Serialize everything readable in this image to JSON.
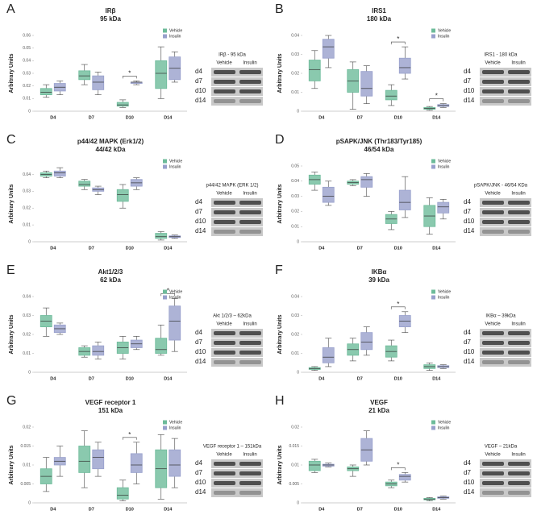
{
  "chart_data": [
    {
      "type": "box",
      "panel": "A",
      "title": "IRβ",
      "subtitle": "95 kDa",
      "y_label": "Arbitrary Units",
      "categories": [
        "D4",
        "D7",
        "D10",
        "D14"
      ],
      "ylim": [
        0,
        0.06
      ],
      "yticks": [
        0,
        0.01,
        0.02,
        0.03,
        0.04,
        0.05,
        0.06
      ],
      "legend": "upper right",
      "series": [
        {
          "name": "Vehicle",
          "color": "#6dbb9a",
          "values": [
            {
              "min": 0.011,
              "q1": 0.013,
              "median": 0.015,
              "q3": 0.018,
              "max": 0.021
            },
            {
              "min": 0.021,
              "q1": 0.025,
              "median": 0.028,
              "q3": 0.032,
              "max": 0.037
            },
            {
              "min": 0.003,
              "q1": 0.004,
              "median": 0.005,
              "q3": 0.007,
              "max": 0.009
            },
            {
              "min": 0.01,
              "q1": 0.018,
              "median": 0.03,
              "q3": 0.04,
              "max": 0.051
            }
          ]
        },
        {
          "name": "Insulin",
          "color": "#98a0cc",
          "values": [
            {
              "min": 0.013,
              "q1": 0.016,
              "median": 0.019,
              "q3": 0.022,
              "max": 0.024
            },
            {
              "min": 0.013,
              "q1": 0.017,
              "median": 0.023,
              "q3": 0.028,
              "max": 0.031
            },
            {
              "min": 0.021,
              "q1": 0.022,
              "median": 0.023,
              "q3": 0.023,
              "max": 0.024
            },
            {
              "min": 0.023,
              "q1": 0.025,
              "median": 0.034,
              "q3": 0.043,
              "max": 0.047
            }
          ]
        }
      ],
      "annotations": [
        {
          "category": "D10",
          "text": "*"
        }
      ],
      "blot": {
        "title": "IRβ - 95 kDa",
        "lanes": [
          "Vehicle",
          "Insulin"
        ],
        "rows": [
          "d4",
          "d7",
          "d10",
          "d14"
        ]
      }
    },
    {
      "type": "box",
      "panel": "B",
      "title": "IRS1",
      "subtitle": "180 kDa",
      "y_label": "Arbitrary Units",
      "categories": [
        "D4",
        "D7",
        "D10",
        "D14"
      ],
      "ylim": [
        0,
        0.04
      ],
      "yticks": [
        0,
        0.01,
        0.02,
        0.03,
        0.04
      ],
      "legend": "upper right",
      "series": [
        {
          "name": "Vehicle",
          "color": "#6dbb9a",
          "values": [
            {
              "min": 0.012,
              "q1": 0.016,
              "median": 0.022,
              "q3": 0.027,
              "max": 0.032
            },
            {
              "min": 0.001,
              "q1": 0.01,
              "median": 0.016,
              "q3": 0.022,
              "max": 0.026
            },
            {
              "min": 0.003,
              "q1": 0.006,
              "median": 0.008,
              "q3": 0.011,
              "max": 0.014
            },
            {
              "min": 0.0005,
              "q1": 0.001,
              "median": 0.0015,
              "q3": 0.002,
              "max": 0.0025
            }
          ]
        },
        {
          "name": "Insulin",
          "color": "#98a0cc",
          "values": [
            {
              "min": 0.023,
              "q1": 0.028,
              "median": 0.034,
              "q3": 0.038,
              "max": 0.04
            },
            {
              "min": 0.004,
              "q1": 0.008,
              "median": 0.012,
              "q3": 0.021,
              "max": 0.024
            },
            {
              "min": 0.017,
              "q1": 0.02,
              "median": 0.023,
              "q3": 0.028,
              "max": 0.034
            },
            {
              "min": 0.002,
              "q1": 0.0025,
              "median": 0.003,
              "q3": 0.0035,
              "max": 0.004
            }
          ]
        }
      ],
      "annotations": [
        {
          "category": "D10",
          "text": "*"
        },
        {
          "category": "D14",
          "text": "*"
        }
      ],
      "blot": {
        "title": "IRS1 - 180 kDa",
        "lanes": [
          "Vehicle",
          "Insulin"
        ],
        "rows": [
          "d4",
          "d7",
          "d10",
          "d14"
        ]
      }
    },
    {
      "type": "box",
      "panel": "C",
      "title": "p44/42 MAPK (Erk1/2)",
      "subtitle": "44/42 kDa",
      "y_label": "Arbitrary Units",
      "categories": [
        "D4",
        "D7",
        "D10",
        "D14"
      ],
      "ylim": [
        0,
        0.045
      ],
      "yticks": [
        0,
        0.01,
        0.02,
        0.03,
        0.04
      ],
      "legend": "upper right",
      "series": [
        {
          "name": "Vehicle",
          "color": "#6dbb9a",
          "values": [
            {
              "min": 0.038,
              "q1": 0.039,
              "median": 0.04,
              "q3": 0.041,
              "max": 0.042
            },
            {
              "min": 0.031,
              "q1": 0.033,
              "median": 0.034,
              "q3": 0.036,
              "max": 0.037
            },
            {
              "min": 0.02,
              "q1": 0.024,
              "median": 0.028,
              "q3": 0.031,
              "max": 0.034
            },
            {
              "min": 0.001,
              "q1": 0.002,
              "median": 0.003,
              "q3": 0.005,
              "max": 0.006
            }
          ]
        },
        {
          "name": "Insulin",
          "color": "#98a0cc",
          "values": [
            {
              "min": 0.038,
              "q1": 0.039,
              "median": 0.041,
              "q3": 0.042,
              "max": 0.044
            },
            {
              "min": 0.028,
              "q1": 0.03,
              "median": 0.031,
              "q3": 0.032,
              "max": 0.033
            },
            {
              "min": 0.031,
              "q1": 0.033,
              "median": 0.035,
              "q3": 0.037,
              "max": 0.038
            },
            {
              "min": 0.002,
              "q1": 0.0025,
              "median": 0.003,
              "q3": 0.0035,
              "max": 0.004
            }
          ]
        }
      ],
      "annotations": [],
      "blot": {
        "title": "p44/42 MAPK (ERK 1/2)",
        "lanes": [
          "Vehicle",
          "Insulin"
        ],
        "rows": [
          "d4",
          "d7",
          "d10",
          "d14"
        ]
      }
    },
    {
      "type": "box",
      "panel": "D",
      "title": "pSAPK/JNK (Thr183/Tyr185)",
      "subtitle": "46/54 kDa",
      "y_label": "Arbitrary Units",
      "categories": [
        "D4",
        "D7",
        "D10",
        "D14"
      ],
      "ylim": [
        0,
        0.05
      ],
      "yticks": [
        0,
        0.01,
        0.02,
        0.03,
        0.04,
        0.05
      ],
      "legend": "upper right",
      "series": [
        {
          "name": "Vehicle",
          "color": "#6dbb9a",
          "values": [
            {
              "min": 0.034,
              "q1": 0.038,
              "median": 0.041,
              "q3": 0.044,
              "max": 0.046
            },
            {
              "min": 0.037,
              "q1": 0.038,
              "median": 0.039,
              "q3": 0.04,
              "max": 0.041
            },
            {
              "min": 0.008,
              "q1": 0.012,
              "median": 0.015,
              "q3": 0.018,
              "max": 0.02
            },
            {
              "min": 0.005,
              "q1": 0.01,
              "median": 0.017,
              "q3": 0.024,
              "max": 0.029
            }
          ]
        },
        {
          "name": "Insulin",
          "color": "#98a0cc",
          "values": [
            {
              "min": 0.024,
              "q1": 0.026,
              "median": 0.03,
              "q3": 0.036,
              "max": 0.04
            },
            {
              "min": 0.03,
              "q1": 0.036,
              "median": 0.041,
              "q3": 0.043,
              "max": 0.045
            },
            {
              "min": 0.016,
              "q1": 0.021,
              "median": 0.026,
              "q3": 0.034,
              "max": 0.043
            },
            {
              "min": 0.015,
              "q1": 0.019,
              "median": 0.023,
              "q3": 0.026,
              "max": 0.028
            }
          ]
        }
      ],
      "annotations": [],
      "blot": {
        "title": "pSAPK/JNK - 46/54 KDa",
        "lanes": [
          "Vehicle",
          "Insulin"
        ],
        "rows": [
          "d4",
          "d7",
          "d10",
          "d14"
        ]
      }
    },
    {
      "type": "box",
      "panel": "E",
      "title": "Akt1/2/3",
      "subtitle": "62 kDa",
      "y_label": "Arbitrary Units",
      "categories": [
        "D4",
        "D7",
        "D10",
        "D14"
      ],
      "ylim": [
        0,
        0.04
      ],
      "yticks": [
        0,
        0.01,
        0.02,
        0.03,
        0.04
      ],
      "legend": "upper right",
      "series": [
        {
          "name": "Vehicle",
          "color": "#6dbb9a",
          "values": [
            {
              "min": 0.019,
              "q1": 0.024,
              "median": 0.027,
              "q3": 0.03,
              "max": 0.034
            },
            {
              "min": 0.008,
              "q1": 0.009,
              "median": 0.011,
              "q3": 0.013,
              "max": 0.014
            },
            {
              "min": 0.007,
              "q1": 0.01,
              "median": 0.013,
              "q3": 0.016,
              "max": 0.019
            },
            {
              "min": 0.009,
              "q1": 0.01,
              "median": 0.012,
              "q3": 0.018,
              "max": 0.025
            }
          ]
        },
        {
          "name": "Insulin",
          "color": "#98a0cc",
          "values": [
            {
              "min": 0.02,
              "q1": 0.021,
              "median": 0.023,
              "q3": 0.025,
              "max": 0.026
            },
            {
              "min": 0.007,
              "q1": 0.009,
              "median": 0.011,
              "q3": 0.014,
              "max": 0.016
            },
            {
              "min": 0.012,
              "q1": 0.013,
              "median": 0.015,
              "q3": 0.017,
              "max": 0.019
            },
            {
              "min": 0.011,
              "q1": 0.017,
              "median": 0.027,
              "q3": 0.035,
              "max": 0.039
            }
          ]
        }
      ],
      "annotations": [
        {
          "category": "D14",
          "text": "*"
        }
      ],
      "blot": {
        "title": "Akt 1/2/3 – 62kDa",
        "lanes": [
          "Vehicle",
          "Insulin"
        ],
        "rows": [
          "d4",
          "d7",
          "d10",
          "d14"
        ]
      }
    },
    {
      "type": "box",
      "panel": "F",
      "title": "IKBα",
      "subtitle": "39 kDa",
      "y_label": "Arbitrary Units",
      "categories": [
        "D4",
        "D7",
        "D10",
        "D14"
      ],
      "ylim": [
        0,
        0.04
      ],
      "yticks": [
        0,
        0.01,
        0.02,
        0.03,
        0.04
      ],
      "legend": "upper right",
      "series": [
        {
          "name": "Vehicle",
          "color": "#6dbb9a",
          "values": [
            {
              "min": 0.001,
              "q1": 0.0015,
              "median": 0.002,
              "q3": 0.0025,
              "max": 0.003
            },
            {
              "min": 0.006,
              "q1": 0.009,
              "median": 0.012,
              "q3": 0.015,
              "max": 0.018
            },
            {
              "min": 0.006,
              "q1": 0.008,
              "median": 0.011,
              "q3": 0.014,
              "max": 0.017
            },
            {
              "min": 0.001,
              "q1": 0.002,
              "median": 0.003,
              "q3": 0.004,
              "max": 0.005
            }
          ]
        },
        {
          "name": "Insulin",
          "color": "#98a0cc",
          "values": [
            {
              "min": 0.003,
              "q1": 0.005,
              "median": 0.008,
              "q3": 0.013,
              "max": 0.018
            },
            {
              "min": 0.009,
              "q1": 0.012,
              "median": 0.016,
              "q3": 0.021,
              "max": 0.024
            },
            {
              "min": 0.021,
              "q1": 0.024,
              "median": 0.027,
              "q3": 0.03,
              "max": 0.032
            },
            {
              "min": 0.002,
              "q1": 0.0025,
              "median": 0.003,
              "q3": 0.0035,
              "max": 0.004
            }
          ]
        }
      ],
      "annotations": [
        {
          "category": "D10",
          "text": "*"
        }
      ],
      "blot": {
        "title": "IKBα – 39kDa",
        "lanes": [
          "Vehicle",
          "Insulin"
        ],
        "rows": [
          "d4",
          "d7",
          "d10",
          "d14"
        ]
      }
    },
    {
      "type": "box",
      "panel": "G",
      "title": "VEGF receptor 1",
      "subtitle": "151 kDa",
      "y_label": "Arbitrary Units",
      "categories": [
        "D4",
        "D7",
        "D10",
        "D14"
      ],
      "ylim": [
        0,
        0.02
      ],
      "yticks": [
        0,
        0.005,
        0.01,
        0.015,
        0.02
      ],
      "legend": "upper right",
      "series": [
        {
          "name": "Vehicle",
          "color": "#6dbb9a",
          "values": [
            {
              "min": 0.003,
              "q1": 0.005,
              "median": 0.007,
              "q3": 0.009,
              "max": 0.012
            },
            {
              "min": 0.004,
              "q1": 0.008,
              "median": 0.011,
              "q3": 0.015,
              "max": 0.019
            },
            {
              "min": 0.0005,
              "q1": 0.001,
              "median": 0.002,
              "q3": 0.004,
              "max": 0.006
            },
            {
              "min": 0.001,
              "q1": 0.004,
              "median": 0.009,
              "q3": 0.014,
              "max": 0.018
            }
          ]
        },
        {
          "name": "Insulin",
          "color": "#98a0cc",
          "values": [
            {
              "min": 0.007,
              "q1": 0.01,
              "median": 0.011,
              "q3": 0.012,
              "max": 0.015
            },
            {
              "min": 0.007,
              "q1": 0.009,
              "median": 0.012,
              "q3": 0.014,
              "max": 0.016
            },
            {
              "min": 0.005,
              "q1": 0.008,
              "median": 0.01,
              "q3": 0.013,
              "max": 0.016
            },
            {
              "min": 0.004,
              "q1": 0.007,
              "median": 0.01,
              "q3": 0.014,
              "max": 0.017
            }
          ]
        }
      ],
      "annotations": [
        {
          "category": "D10",
          "text": "*"
        }
      ],
      "blot": {
        "title": "VEGF receptor 1 – 151kDa",
        "lanes": [
          "Vehicle",
          "Insulin"
        ],
        "rows": [
          "d4",
          "d7",
          "d10",
          "d14"
        ]
      }
    },
    {
      "type": "box",
      "panel": "H",
      "title": "VEGF",
      "subtitle": "21 kDa",
      "y_label": "Arbitrary Units",
      "categories": [
        "D4",
        "D7",
        "D10",
        "D14"
      ],
      "ylim": [
        0,
        0.02
      ],
      "yticks": [
        0,
        0.005,
        0.01,
        0.015,
        0.02
      ],
      "legend": "upper right",
      "series": [
        {
          "name": "Vehicle",
          "color": "#6dbb9a",
          "values": [
            {
              "min": 0.008,
              "q1": 0.0085,
              "median": 0.01,
              "q3": 0.011,
              "max": 0.0115
            },
            {
              "min": 0.007,
              "q1": 0.0085,
              "median": 0.009,
              "q3": 0.0095,
              "max": 0.01
            },
            {
              "min": 0.004,
              "q1": 0.0045,
              "median": 0.005,
              "q3": 0.0055,
              "max": 0.006
            },
            {
              "min": 0.0005,
              "q1": 0.0008,
              "median": 0.001,
              "q3": 0.0012,
              "max": 0.0014
            }
          ]
        },
        {
          "name": "Insulin",
          "color": "#98a0cc",
          "values": [
            {
              "min": 0.0095,
              "q1": 0.0097,
              "median": 0.01,
              "q3": 0.0102,
              "max": 0.0105
            },
            {
              "min": 0.01,
              "q1": 0.011,
              "median": 0.014,
              "q3": 0.017,
              "max": 0.019
            },
            {
              "min": 0.0055,
              "q1": 0.006,
              "median": 0.007,
              "q3": 0.0075,
              "max": 0.008
            },
            {
              "min": 0.001,
              "q1": 0.0012,
              "median": 0.0014,
              "q3": 0.0016,
              "max": 0.0018
            }
          ]
        }
      ],
      "annotations": [
        {
          "category": "D10",
          "text": "*"
        }
      ],
      "blot": {
        "title": "VEGF – 21kDa",
        "lanes": [
          "Vehicle",
          "Insulin"
        ],
        "rows": [
          "d4",
          "d7",
          "d10",
          "d14"
        ]
      }
    }
  ]
}
